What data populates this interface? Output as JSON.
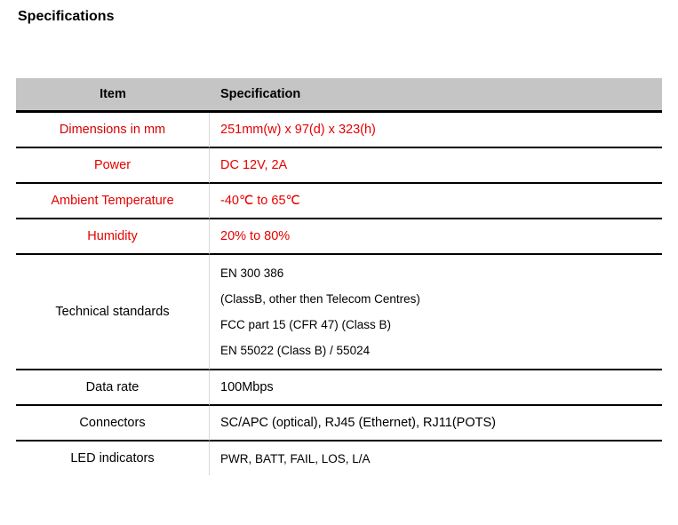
{
  "title": "Specifications",
  "columns": {
    "item": "Item",
    "spec": "Specification"
  },
  "rows": {
    "dims": {
      "item": "Dimensions in mm",
      "spec": "251mm(w) x 97(d) x 323(h)"
    },
    "power": {
      "item": "Power",
      "spec": "DC 12V, 2A"
    },
    "temp": {
      "item": "Ambient Temperature",
      "spec": "-40℃ to 65℃"
    },
    "humid": {
      "item": "Humidity",
      "spec": "20% to 80%"
    },
    "tech": {
      "item": "Technical standards",
      "lines": [
        "EN 300 386",
        "(ClassB, other then Telecom Centres)",
        "FCC part 15 (CFR 47) (Class B)",
        "EN 55022 (Class B) / 55024"
      ]
    },
    "rate": {
      "item": "Data rate",
      "spec": "100Mbps"
    },
    "conn": {
      "item": "Connectors",
      "spec": "SC/APC (optical), RJ45 (Ethernet), RJ11(POTS)"
    },
    "led": {
      "item": "LED indicators",
      "spec": "PWR, BATT, FAIL, LOS, L/A"
    }
  },
  "colors": {
    "header_bg": "#c5c5c5",
    "red_text": "#e60000",
    "black": "#000000",
    "divider": "#000000",
    "cell_v_divider": "#d9d9d9",
    "background": "#ffffff"
  }
}
